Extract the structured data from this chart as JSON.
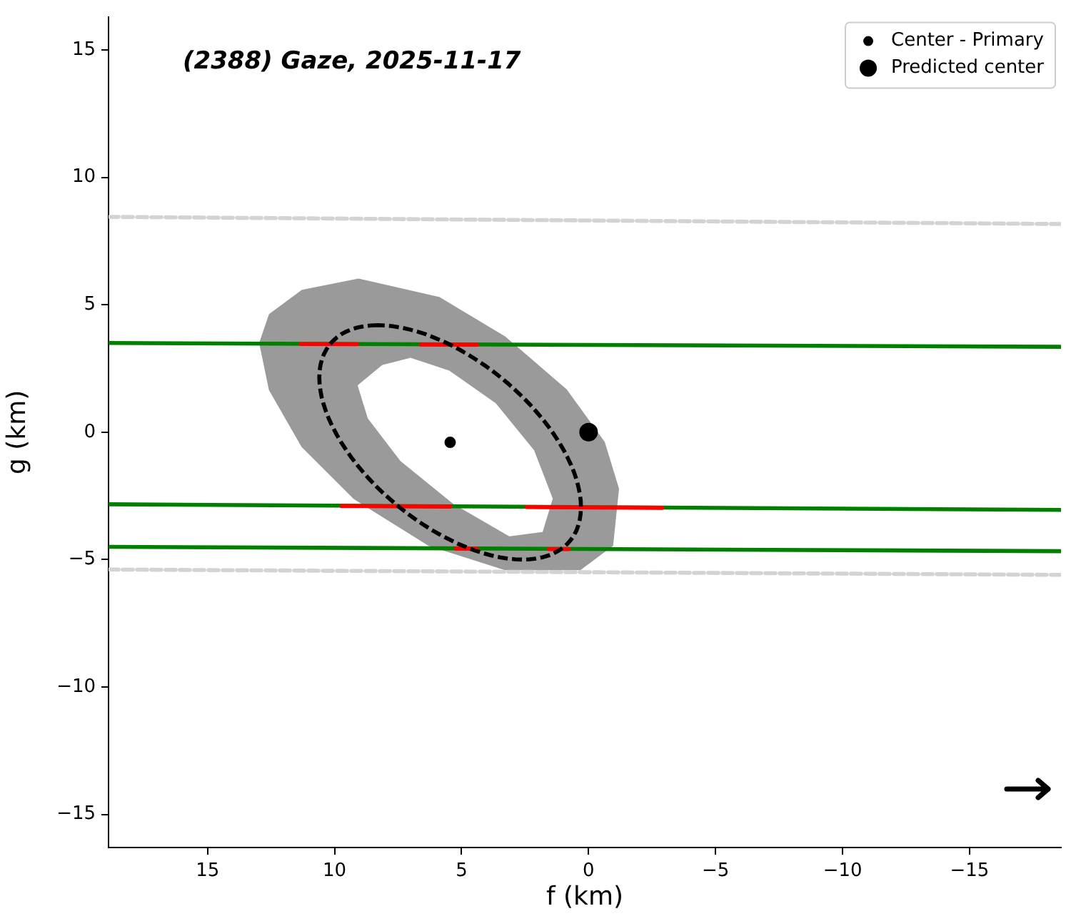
{
  "chart_data": {
    "type": "line",
    "title": "(2388) Gaze, 2025-11-17",
    "xlabel": "f (km)",
    "ylabel": "g (km)",
    "xlim": [
      18.9,
      -18.6
    ],
    "ylim": [
      -16.3,
      16.3
    ],
    "xticks": [
      15,
      10,
      5,
      0,
      {
        "value": -5,
        "label": "−5"
      },
      {
        "value": -10,
        "label": "−10"
      },
      {
        "value": -15,
        "label": "−15"
      }
    ],
    "yticks": [
      {
        "value": -15,
        "label": "−15"
      },
      {
        "value": -10,
        "label": "−10"
      },
      {
        "value": -5,
        "label": "−5"
      },
      0,
      5,
      10,
      15
    ],
    "legend": "top right",
    "grid": false,
    "series": [
      {
        "type": "area",
        "color": "#9a9a9a",
        "x": [
          9.06,
          11.28,
          12.56,
          12.94,
          12.56,
          11.28,
          9.22,
          6.28,
          3.28,
          0.33,
          -0.94,
          -1.17,
          -0.61,
          0.89,
          3.28,
          5.89,
          9.06
        ],
        "values": [
          6.0,
          5.56,
          4.61,
          3.5,
          1.67,
          -0.56,
          -2.61,
          -4.44,
          -5.39,
          -5.39,
          -4.44,
          -2.22,
          -0.39,
          1.67,
          3.72,
          5.28,
          6.0
        ]
      },
      {
        "type": "area",
        "color": "#ffffff",
        "x": [
          8.11,
          9.06,
          8.67,
          7.39,
          5.33,
          3.11,
          1.83,
          1.44,
          2.17,
          3.67,
          5.5,
          7.0,
          8.11
        ],
        "values": [
          2.61,
          1.83,
          0.56,
          -1.11,
          -2.78,
          -4.06,
          -3.89,
          -2.61,
          -0.72,
          1.11,
          2.39,
          2.89,
          2.61
        ]
      },
      {
        "type": "line",
        "color": "#d3d3d3",
        "line_style": "dashed",
        "x": [
          18.9,
          -18.6
        ],
        "values": [
          8.45,
          8.17
        ]
      },
      {
        "type": "line",
        "color": "#d3d3d3",
        "line_style": "dashed",
        "x": [
          18.9,
          -18.6
        ],
        "values": [
          -5.39,
          -5.6
        ]
      },
      {
        "type": "line",
        "color": "#008000",
        "line_style": "solid",
        "x": [
          18.9,
          -18.6
        ],
        "values": [
          3.5,
          3.35
        ]
      },
      {
        "type": "line",
        "color": "#008000",
        "line_style": "solid",
        "x": [
          18.9,
          -18.6
        ],
        "values": [
          -2.83,
          -3.05
        ]
      },
      {
        "type": "line",
        "color": "#008000",
        "line_style": "solid",
        "x": [
          18.9,
          -18.6
        ],
        "values": [
          -4.5,
          -4.67
        ]
      },
      {
        "type": "line",
        "color": "#ff0000",
        "line_style": "solid",
        "x": [
          11.33,
          9.11
        ],
        "values": [
          3.46,
          3.45
        ]
      },
      {
        "type": "line",
        "color": "#ff0000",
        "line_style": "solid",
        "x": [
          6.6,
          4.39
        ],
        "values": [
          3.44,
          3.43
        ]
      },
      {
        "type": "line",
        "color": "#ff0000",
        "line_style": "solid",
        "x": [
          9.72,
          5.44
        ],
        "values": [
          -2.9,
          -2.92
        ]
      },
      {
        "type": "line",
        "color": "#ff0000",
        "line_style": "solid",
        "x": [
          2.44,
          -2.9
        ],
        "values": [
          -2.94,
          -2.97
        ]
      },
      {
        "type": "line",
        "color": "#ff0000",
        "line_style": "solid",
        "x": [
          5.22,
          4.39
        ],
        "values": [
          -4.57,
          -4.58
        ]
      },
      {
        "type": "line",
        "color": "#ff0000",
        "line_style": "solid",
        "x": [
          1.56,
          0.78
        ],
        "values": [
          -4.59,
          -4.59
        ]
      },
      {
        "type": "scatter",
        "name": "Center - Primary",
        "color": "#000000",
        "marker": "circle",
        "x": [
          5.45
        ],
        "values": [
          -0.4
        ]
      },
      {
        "type": "scatter",
        "name": "Predicted center",
        "color": "#000000",
        "marker": "circle",
        "x": [
          0
        ],
        "values": [
          0
        ]
      }
    ]
  }
}
